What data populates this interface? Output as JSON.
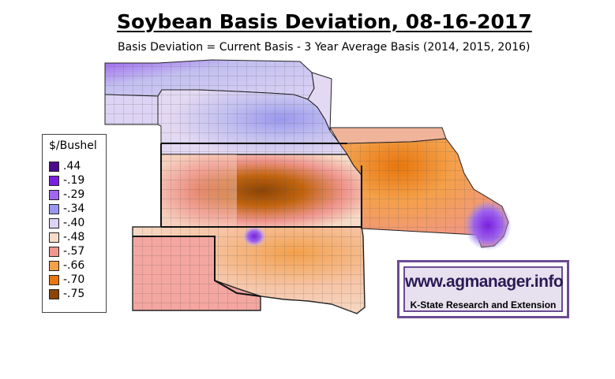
{
  "title": "Soybean Basis Deviation, 08-16-2017",
  "subtitle": "Basis Deviation = Current Basis - 3 Year Average Basis (2014, 2015, 2016)",
  "legend": {
    "title": "$/Bushel",
    "items": [
      {
        "label": ".44",
        "color": "#4b0a8c"
      },
      {
        "label": "-.19",
        "color": "#7a1fe0"
      },
      {
        "label": "-.29",
        "color": "#a066f0"
      },
      {
        "label": "-.34",
        "color": "#9a98ee"
      },
      {
        "label": "-.40",
        "color": "#ddd3f4"
      },
      {
        "label": "-.48",
        "color": "#f6dcc8"
      },
      {
        "label": "-.57",
        "color": "#f0968e"
      },
      {
        "label": "-.66",
        "color": "#f4a04a"
      },
      {
        "label": "-.70",
        "color": "#e8760c"
      },
      {
        "label": "-.75",
        "color": "#8a4406"
      }
    ]
  },
  "logo": {
    "url": "www.agmanager.info",
    "org": "K-State Research and Extension",
    "colors": {
      "frame": "#6a4c93",
      "fill": "#e7e1ef",
      "text": "#2b1a55"
    }
  },
  "regions": [
    "South Dakota",
    "Nebraska",
    "Iowa",
    "Kansas",
    "Missouri",
    "Oklahoma",
    "Texas Panhandle"
  ]
}
